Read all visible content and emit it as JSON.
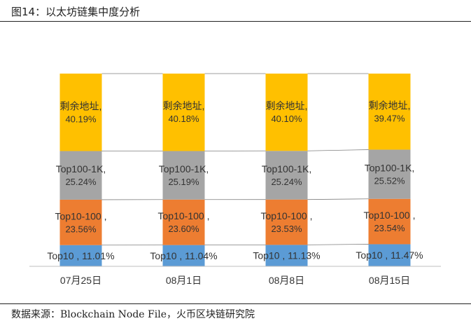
{
  "figure": {
    "title": "图14：以太坊链集中度分析",
    "source": "数据来源：Blockchain Node File，火币区块链研究院"
  },
  "chart_data": {
    "type": "bar",
    "stacked": true,
    "normalized": true,
    "categories": [
      "07月25日",
      "08月1日",
      "08月8日",
      "08月15日"
    ],
    "series": [
      {
        "name": "Top10",
        "values": [
          11.01,
          11.04,
          11.13,
          11.47
        ],
        "color": "#5B9BD5",
        "labels": [
          "Top10 , 11.01%",
          "Top10 , 11.04%",
          "Top10 , 11.13%",
          "Top10 , 11.47%"
        ]
      },
      {
        "name": "Top10-100",
        "values": [
          23.56,
          23.6,
          23.53,
          23.54
        ],
        "color": "#ED7D31",
        "labels": [
          [
            "Top10-100 ,",
            "23.56%"
          ],
          [
            "Top10-100 ,",
            "23.60%"
          ],
          [
            "Top10-100 ,",
            "23.53%"
          ],
          [
            "Top10-100 ,",
            "23.54%"
          ]
        ]
      },
      {
        "name": "Top100-1K",
        "values": [
          25.24,
          25.19,
          25.24,
          25.52
        ],
        "color": "#A5A5A5",
        "labels": [
          [
            "Top100-1K,",
            "25.24%"
          ],
          [
            "Top100-1K,",
            "25.19%"
          ],
          [
            "Top100-1K,",
            "25.24%"
          ],
          [
            "Top100-1K,",
            "25.52%"
          ]
        ]
      },
      {
        "name": "剩余地址",
        "values": [
          40.19,
          40.18,
          40.1,
          39.47
        ],
        "color": "#FFC000",
        "labels": [
          [
            "剩余地址,",
            "40.19%"
          ],
          [
            "剩余地址,",
            "40.18%"
          ],
          [
            "剩余地址,",
            "40.10%"
          ],
          [
            "剩余地址,",
            "39.47%"
          ]
        ]
      }
    ],
    "ylim": [
      0,
      100
    ],
    "xlabel": "",
    "ylabel": "",
    "legend": "none",
    "grid": false
  }
}
